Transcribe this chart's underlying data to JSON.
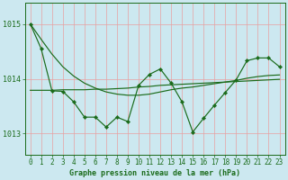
{
  "title": "Graphe pression niveau de la mer (hPa)",
  "bg_color": "#cce8f0",
  "line_color": "#1a6b1a",
  "ylim": [
    1012.62,
    1015.38
  ],
  "yticks": [
    1013,
    1014,
    1015
  ],
  "xlim": [
    -0.5,
    23.5
  ],
  "xticks": [
    0,
    1,
    2,
    3,
    4,
    5,
    6,
    7,
    8,
    9,
    10,
    11,
    12,
    13,
    14,
    15,
    16,
    17,
    18,
    19,
    20,
    21,
    22,
    23
  ],
  "main_data": [
    1015.0,
    1014.55,
    1013.78,
    1013.77,
    1013.58,
    1013.3,
    1013.3,
    1013.12,
    1013.3,
    1013.22,
    1013.88,
    1014.08,
    1014.18,
    1013.92,
    1013.58,
    1013.03,
    1013.28,
    1013.52,
    1013.75,
    1013.98,
    1014.33,
    1014.38,
    1014.38,
    1014.22
  ],
  "smooth1": [
    1015.0,
    1014.72,
    1014.45,
    1014.22,
    1014.05,
    1013.92,
    1013.83,
    1013.76,
    1013.72,
    1013.7,
    1013.7,
    1013.72,
    1013.76,
    1013.8,
    1013.83,
    1013.85,
    1013.88,
    1013.91,
    1013.94,
    1013.97,
    1014.01,
    1014.04,
    1014.06,
    1014.07
  ],
  "smooth2": [
    1013.79,
    1013.79,
    1013.79,
    1013.8,
    1013.8,
    1013.8,
    1013.81,
    1013.81,
    1013.82,
    1013.83,
    1013.85,
    1013.86,
    1013.88,
    1013.89,
    1013.9,
    1013.91,
    1013.92,
    1013.93,
    1013.94,
    1013.95,
    1013.96,
    1013.97,
    1013.98,
    1013.99
  ],
  "grid_color_v": "#e8a0a0",
  "grid_color_h": "#e8a0a0",
  "tick_fontsize": 5.5,
  "xlabel_fontsize": 6.0
}
